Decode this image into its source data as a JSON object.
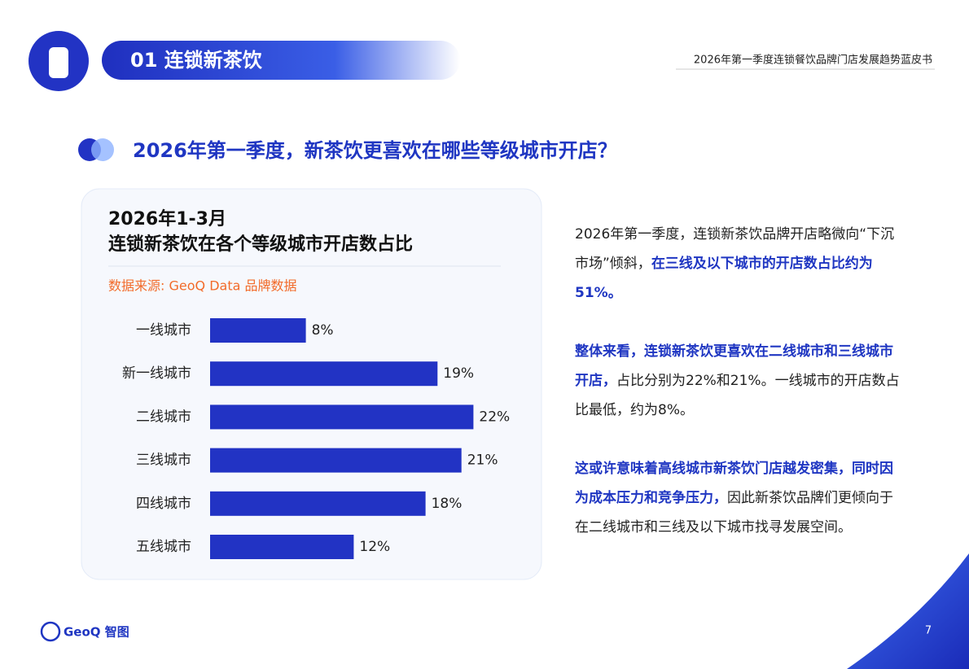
{
  "header": {
    "section": "01 连锁新茶饮",
    "report": "2026年第一季度连锁餐饮品牌门店发展趋势蓝皮书"
  },
  "heading": "2026年第一季度，新茶饮更喜欢在哪些等级城市开店？",
  "chart_data": {
    "type": "bar",
    "orientation": "horizontal",
    "title": "2026年1-3月",
    "subtitle": "连锁新茶饮在各个等级城市开店数占比",
    "source": "数据来源: GeoQ Data 品牌数据",
    "categories": [
      "一线城市",
      "新一线城市",
      "二线城市",
      "三线城市",
      "四线城市",
      "五线城市"
    ],
    "values": [
      8,
      19,
      22,
      21,
      18,
      12
    ],
    "value_labels": [
      "8%",
      "19%",
      "22%",
      "21%",
      "18%",
      "12%"
    ],
    "color": "#2233c4"
  },
  "paragraphs": [
    [
      {
        "text": "2026年第一季度，连锁新茶饮品牌开店略微向“下沉市场”倾斜，",
        "bold": false
      },
      {
        "text": "在三线及以下城市的开店数占比约为51%。",
        "bold": true
      }
    ],
    [
      {
        "text": "整体来看，连锁新茶饮更喜欢在二线城市和三线城市开店，",
        "bold": true
      },
      {
        "text": "占比分别为22%和21%。一线城市的开店数占比最低，约为8%。",
        "bold": false
      }
    ],
    [
      {
        "text": "这或许意味着高线城市新茶饮门店越发密集，同时因为成本压力和竞争压力，",
        "bold": true
      },
      {
        "text": "因此新茶饮品牌们更倾向于在二线城市和三线及以下城市找寻发展空间。",
        "bold": false
      }
    ]
  ],
  "footer": {
    "logo": "GeoQ 智图",
    "page": 7
  }
}
